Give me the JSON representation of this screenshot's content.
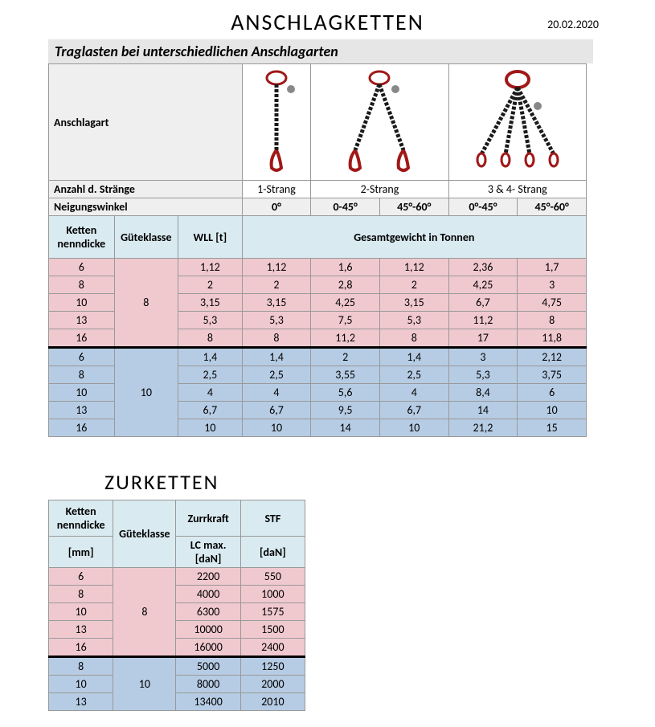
{
  "doc": {
    "title": "ANSCHLAGKETTEN",
    "date": "20.02.2020",
    "subtitle": "Traglasten bei unterschiedlichen Anschlagarten"
  },
  "table1": {
    "row_anschlagart_label": "Anschlagart",
    "row_strands_label": "Anzahl d. Stränge",
    "strands": [
      "1-Strang",
      "2-Strang",
      "3 & 4- Strang"
    ],
    "row_angle_label": "Neigungswinkel",
    "angles": [
      "0°",
      "0-45°",
      "45°-60°",
      "0°-45°",
      "45°-60°"
    ],
    "col_headers": {
      "ketten": "Ketten nenndicke",
      "guete": "Güteklasse",
      "wll": "WLL [t]",
      "gesamt": "Gesamtgewicht in Tonnen"
    },
    "group8": {
      "guete": "8",
      "rows": [
        {
          "d": "6",
          "v": [
            "1,12",
            "1,12",
            "1,6",
            "1,12",
            "2,36",
            "1,7"
          ]
        },
        {
          "d": "8",
          "v": [
            "2",
            "2",
            "2,8",
            "2",
            "4,25",
            "3"
          ]
        },
        {
          "d": "10",
          "v": [
            "3,15",
            "3,15",
            "4,25",
            "3,15",
            "6,7",
            "4,75"
          ]
        },
        {
          "d": "13",
          "v": [
            "5,3",
            "5,3",
            "7,5",
            "5,3",
            "11,2",
            "8"
          ]
        },
        {
          "d": "16",
          "v": [
            "8",
            "8",
            "11,2",
            "8",
            "17",
            "11,8"
          ]
        }
      ]
    },
    "group10": {
      "guete": "10",
      "rows": [
        {
          "d": "6",
          "v": [
            "1,4",
            "1,4",
            "2",
            "1,4",
            "3",
            "2,12"
          ]
        },
        {
          "d": "8",
          "v": [
            "2,5",
            "2,5",
            "3,55",
            "2,5",
            "5,3",
            "3,75"
          ]
        },
        {
          "d": "10",
          "v": [
            "4",
            "4",
            "5,6",
            "4",
            "8,4",
            "6"
          ]
        },
        {
          "d": "13",
          "v": [
            "6,7",
            "6,7",
            "9,5",
            "6,7",
            "14",
            "10"
          ]
        },
        {
          "d": "16",
          "v": [
            "10",
            "10",
            "14",
            "10",
            "21,2",
            "15"
          ]
        }
      ]
    }
  },
  "table2": {
    "title": "ZURKETTEN",
    "headers": {
      "ketten": "Ketten nenndicke",
      "guete": "Güteklasse",
      "zurr": "Zurrkraft",
      "stf": "STF",
      "mm": "[mm]",
      "lc": "LC max. [daN]",
      "dan": "[daN]"
    },
    "group8": {
      "guete": "8",
      "rows": [
        {
          "d": "6",
          "lc": "2200",
          "stf": "550"
        },
        {
          "d": "8",
          "lc": "4000",
          "stf": "1000"
        },
        {
          "d": "10",
          "lc": "6300",
          "stf": "1575"
        },
        {
          "d": "13",
          "lc": "10000",
          "stf": "1500"
        },
        {
          "d": "16",
          "lc": "16000",
          "stf": "2400"
        }
      ]
    },
    "group10": {
      "guete": "10",
      "rows": [
        {
          "d": "8",
          "lc": "5000",
          "stf": "1250"
        },
        {
          "d": "10",
          "lc": "8000",
          "stf": "2000"
        },
        {
          "d": "13",
          "lc": "13400",
          "stf": "2010"
        }
      ]
    }
  },
  "colors": {
    "pink": "#f0c9cf",
    "blue": "#b6cce4",
    "teal": "#d9eaf0",
    "gray": "#efefef",
    "chain_red": "#a01818",
    "chain_black": "#1a1a1a"
  }
}
